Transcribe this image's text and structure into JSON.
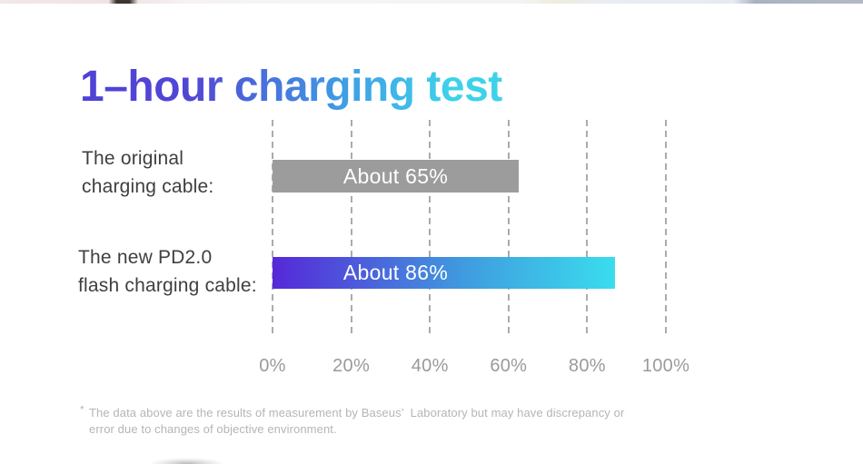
{
  "page": {
    "background": "#ffffff"
  },
  "header": {
    "title": "1–hour charging test",
    "title_gradient": [
      "#4f42d6",
      "#3f9ce4",
      "#3ed2ea"
    ]
  },
  "chart_data": {
    "type": "bar",
    "orientation": "horizontal",
    "title": "1–hour charging test",
    "categories": [
      "The original charging cable:",
      "The new PD2.0 flash charging cable:"
    ],
    "values": [
      65,
      86
    ],
    "value_labels": [
      "About 65%",
      "About 86%"
    ],
    "rendered_bar_percent": [
      62.5,
      87
    ],
    "xlim": [
      0,
      100
    ],
    "x_ticks": [
      "0%",
      "20%",
      "40%",
      "60%",
      "80%",
      "100%"
    ],
    "grid": "vertical-dashed",
    "legend": "none",
    "bar_colors": [
      {
        "type": "solid",
        "color": "#9c9c9c"
      },
      {
        "type": "gradient",
        "from": "#5628d8",
        "via": "#3f9fdf",
        "to": "#3adcee"
      }
    ],
    "value_label_color": "#ffffff"
  },
  "rows": [
    {
      "label_line1": "The original",
      "label_line2": "charging cable:",
      "value_label": "About 65%"
    },
    {
      "label_line1": "The new PD2.0",
      "label_line2": "flash charging cable:",
      "value_label": "About 86%"
    }
  ],
  "footnote": {
    "marker": "*",
    "text": "The data above are the results of measurement by Baseus’  Laboratory but may have discrepancy or\nerror due to changes of objective environment."
  }
}
